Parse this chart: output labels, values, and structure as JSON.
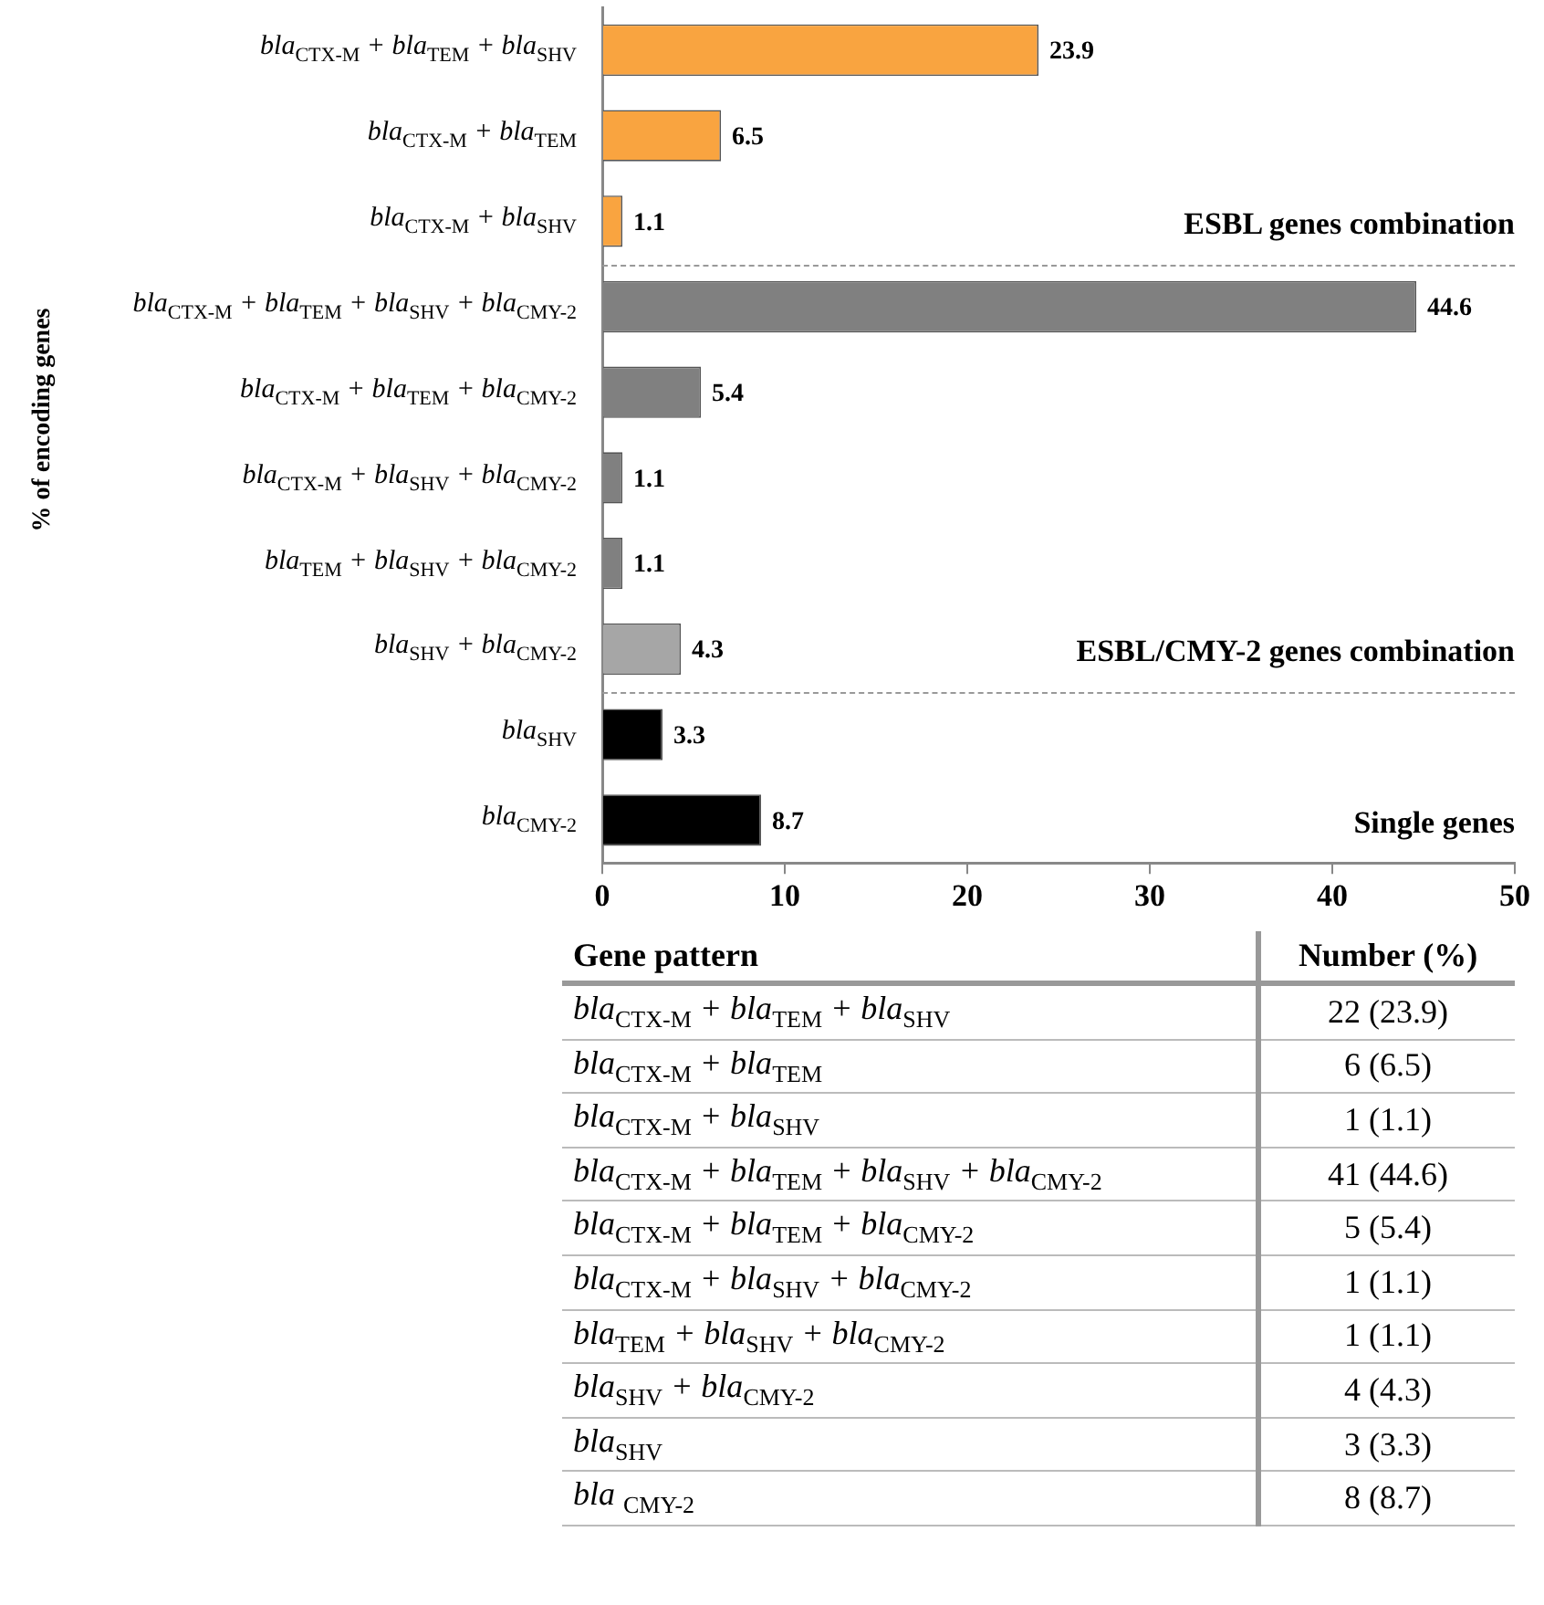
{
  "chart_data": [
    {
      "type": "bar",
      "orientation": "horizontal",
      "ylabel": "% of encoding genes",
      "categories": [
        "bla$_{CTX-M}$ + bla$_{TEM}$ + bla$_{SHV}$",
        "bla$_{CTX-M}$ + bla$_{TEM}$",
        "bla$_{CTX-M}$ + bla$_{SHV}$",
        "bla$_{CTX-M}$ + bla$_{TEM}$ + bla$_{SHV}$ + bla$_{CMY-2}$",
        "bla$_{CTX-M}$ + bla$_{TEM}$ + bla$_{CMY-2}$",
        "bla$_{CTX-M}$ + bla$_{SHV}$ + bla$_{CMY-2}$",
        "bla$_{TEM}$ + bla$_{SHV}$ + bla$_{CMY-2}$",
        "bla$_{SHV}$ + bla$_{CMY-2}$",
        "bla$_{SHV}$",
        "bla$_{CMY-2}$"
      ],
      "values": [
        23.9,
        6.5,
        1.1,
        44.6,
        5.4,
        1.1,
        1.1,
        4.3,
        3.3,
        8.7
      ],
      "colors": [
        "#f9a440",
        "#f9a440",
        "#f9a440",
        "#808080",
        "#808080",
        "#808080",
        "#808080",
        "#a6a6a6",
        "#000000",
        "#000000"
      ],
      "xlim": [
        0,
        50
      ],
      "xticks": [
        0,
        10,
        20,
        30,
        40,
        50
      ],
      "grid": false,
      "legend": false,
      "data_labels": true,
      "annotations": [
        "ESBL genes combination",
        "ESBL/CMY-2 genes combination",
        "Single genes"
      ]
    },
    {
      "type": "other",
      "categories": [
        "bla$_{CTX-M}$ + bla$_{TEM}$ + bla$_{SHV}$",
        "bla$_{CTX-M}$ + bla$_{TEM}$",
        "bla$_{CTX-M}$ + bla$_{SHV}$",
        "bla$_{CTX-M}$ + bla$_{TEM}$ + bla$_{SHV}$ + bla$_{CMY-2}$",
        "bla$_{CTX-M}$ + bla$_{TEM}$ + bla$_{CMY-2}$",
        "bla$_{CTX-M}$ + bla$_{SHV}$ + bla$_{CMY-2}$",
        "bla$_{TEM}$ + bla$_{SHV}$ + bla$_{CMY-2}$",
        "bla$_{SHV}$ + bla$_{CMY-2}$",
        "bla$_{SHV}$",
        "bla $_{CMY-2}$"
      ],
      "value_labels": [
        "22 (23.9)",
        "6 (6.5)",
        "1 (1.1)",
        "41 (44.6)",
        "5 (5.4)",
        "1 (1.1)",
        "1 (1.1)",
        "4 (4.3)",
        "3 (3.3)",
        "8 (8.7)"
      ],
      "annotations": [
        "Gene pattern",
        "Number (%)"
      ]
    }
  ]
}
